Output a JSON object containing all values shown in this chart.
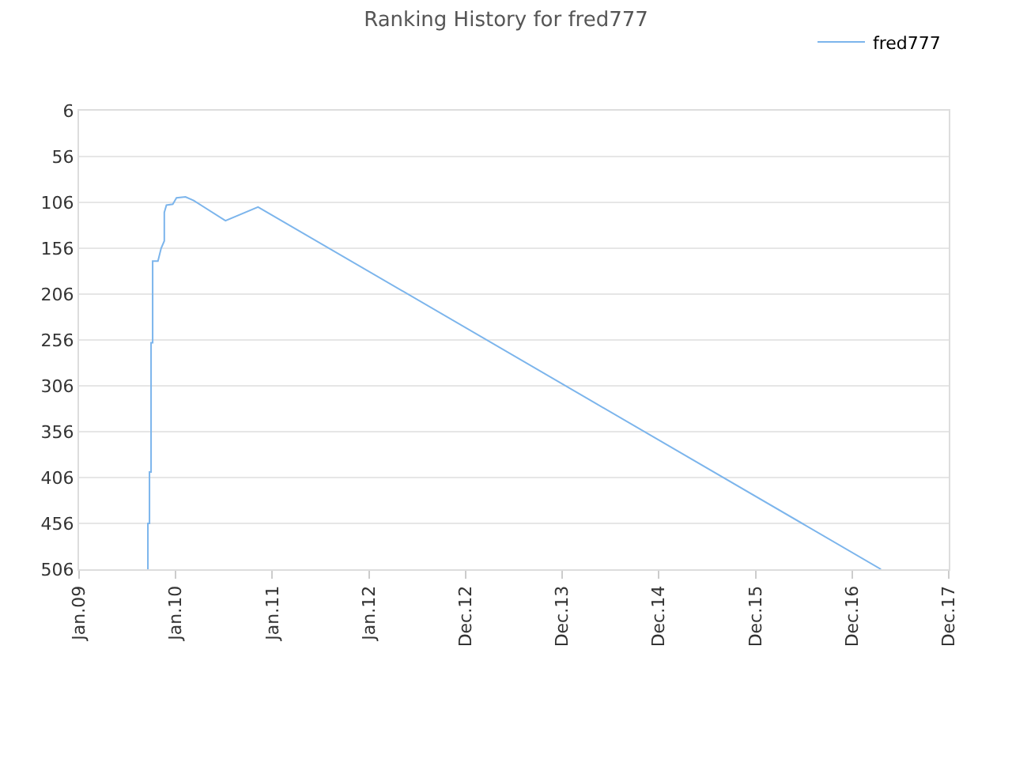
{
  "chart_data": {
    "type": "line",
    "title": "Ranking History for fred777",
    "x": [
      "2009-09-18",
      "2009-09-18",
      "2009-09-24",
      "2009-09-24",
      "2009-09-30",
      "2009-09-30",
      "2009-10-06",
      "2009-10-06",
      "2009-10-26",
      "2009-11-07",
      "2009-11-19",
      "2009-11-19",
      "2009-11-27",
      "2009-12-21",
      "2010-01-04",
      "2010-02-07",
      "2010-03-10",
      "2010-07-08",
      "2010-11-08",
      "2017-04-18"
    ],
    "series": [
      {
        "name": "fred777",
        "color": "#7cb5ec",
        "values": [
          506,
          456,
          456,
          400,
          400,
          259,
          259,
          170,
          170,
          156,
          148,
          117,
          109,
          108,
          101,
          100,
          104,
          126,
          111,
          506
        ]
      }
    ],
    "xlim": [
      "2009-01-01",
      "2017-12-30"
    ],
    "xticks": [
      {
        "value": "2009-01-01",
        "label": "Jan.09"
      },
      {
        "value": "2010-01-01",
        "label": "Jan.10"
      },
      {
        "value": "2011-01-01",
        "label": "Jan.11"
      },
      {
        "value": "2012-01-01",
        "label": "Jan.12"
      },
      {
        "value": "2012-12-31",
        "label": "Dec.12"
      },
      {
        "value": "2013-12-31",
        "label": "Dec.13"
      },
      {
        "value": "2014-12-31",
        "label": "Dec.14"
      },
      {
        "value": "2015-12-31",
        "label": "Dec.15"
      },
      {
        "value": "2016-12-30",
        "label": "Dec.16"
      },
      {
        "value": "2017-12-30",
        "label": "Dec.17"
      }
    ],
    "ylim": [
      506,
      6
    ],
    "yticks": [
      6,
      56,
      106,
      156,
      206,
      256,
      306,
      356,
      406,
      456,
      506
    ],
    "grid": "y",
    "legend": "top right",
    "marker": "none",
    "line_style": "solid"
  }
}
